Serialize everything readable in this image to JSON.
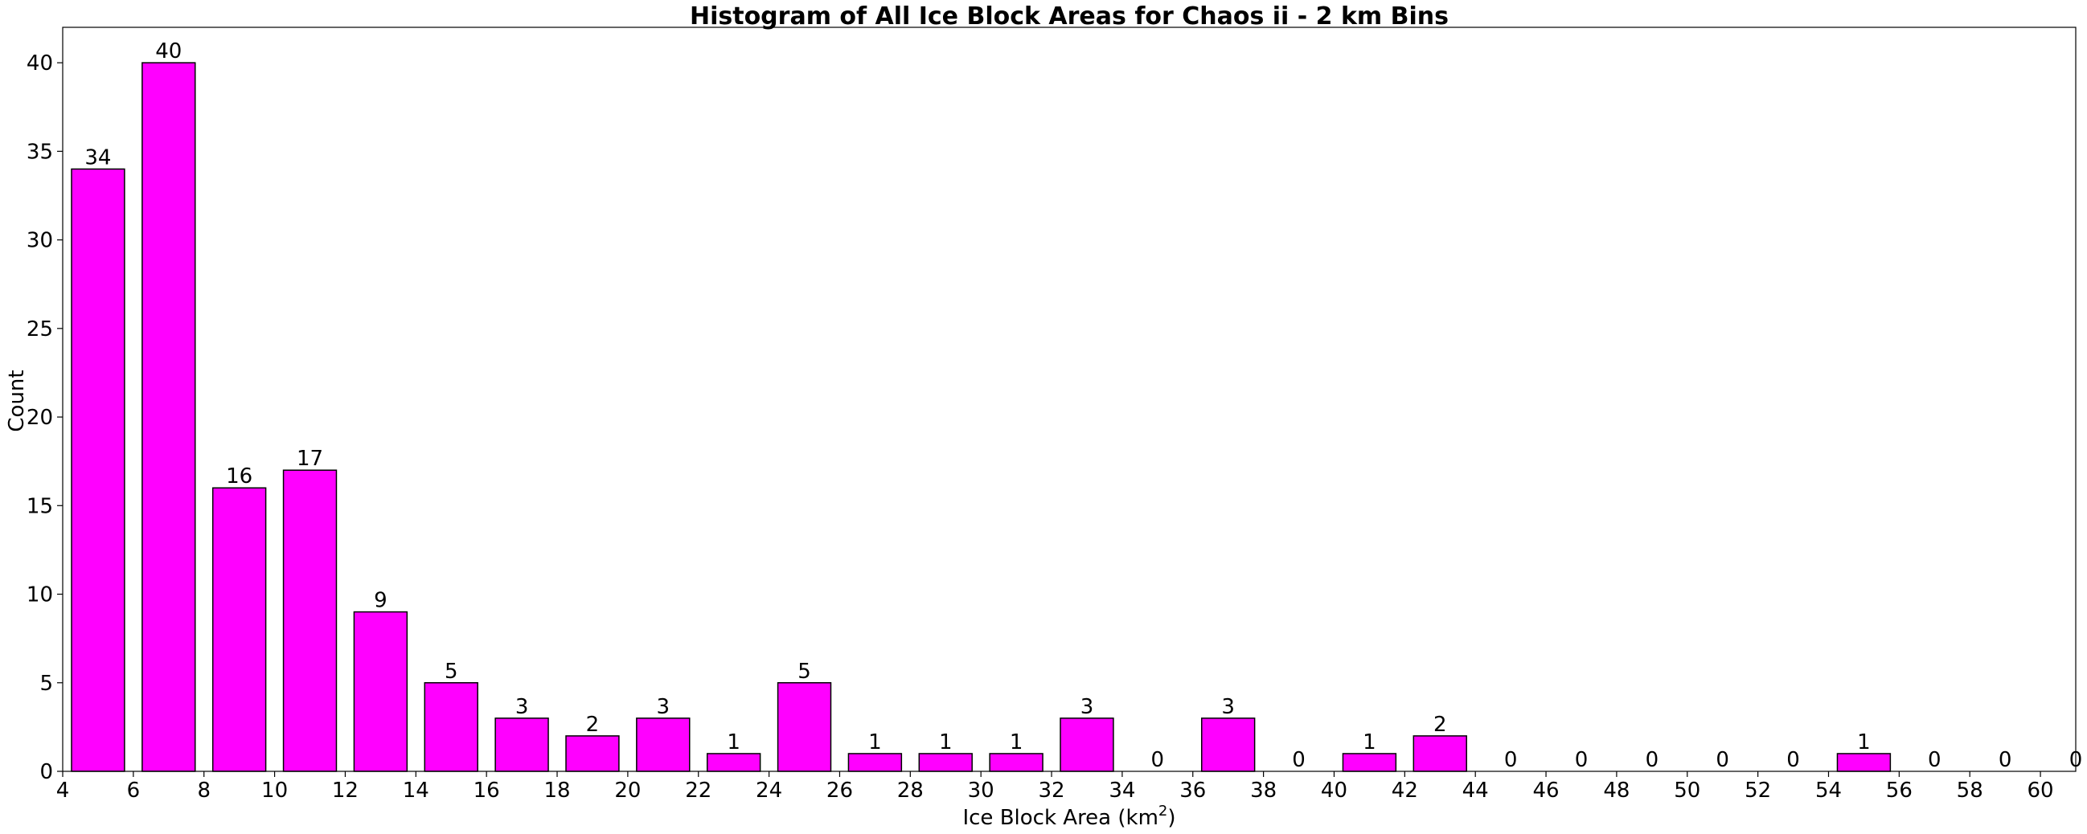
{
  "chart_data": {
    "type": "bar",
    "title": "Histogram of All Ice Block Areas for Chaos ii - 2 km Bins",
    "xlabel": "Ice Block Area (km",
    "xlabel_sup": "2",
    "xlabel_close": ")",
    "ylabel": "Count",
    "xlim": [
      4,
      61
    ],
    "ylim": [
      0,
      42
    ],
    "bar_color": "#ff00ff",
    "bar_edge_color": "#000000",
    "bar_width": 1.5,
    "grid": false,
    "x_ticks": [
      4,
      6,
      8,
      10,
      12,
      14,
      16,
      18,
      20,
      22,
      24,
      26,
      28,
      30,
      32,
      34,
      36,
      38,
      40,
      42,
      44,
      46,
      48,
      50,
      52,
      54,
      56,
      58,
      60
    ],
    "y_ticks": [
      0,
      5,
      10,
      15,
      20,
      25,
      30,
      35,
      40
    ],
    "bins": [
      {
        "center": 5,
        "value": 34
      },
      {
        "center": 7,
        "value": 40
      },
      {
        "center": 9,
        "value": 16
      },
      {
        "center": 11,
        "value": 17
      },
      {
        "center": 13,
        "value": 9
      },
      {
        "center": 15,
        "value": 5
      },
      {
        "center": 17,
        "value": 3
      },
      {
        "center": 19,
        "value": 2
      },
      {
        "center": 21,
        "value": 3
      },
      {
        "center": 23,
        "value": 1
      },
      {
        "center": 25,
        "value": 5
      },
      {
        "center": 27,
        "value": 1
      },
      {
        "center": 29,
        "value": 1
      },
      {
        "center": 31,
        "value": 1
      },
      {
        "center": 33,
        "value": 3
      },
      {
        "center": 35,
        "value": 0
      },
      {
        "center": 37,
        "value": 3
      },
      {
        "center": 39,
        "value": 0
      },
      {
        "center": 41,
        "value": 1
      },
      {
        "center": 43,
        "value": 2
      },
      {
        "center": 45,
        "value": 0
      },
      {
        "center": 47,
        "value": 0
      },
      {
        "center": 49,
        "value": 0
      },
      {
        "center": 51,
        "value": 0
      },
      {
        "center": 53,
        "value": 0
      },
      {
        "center": 55,
        "value": 1
      },
      {
        "center": 57,
        "value": 0
      },
      {
        "center": 59,
        "value": 0
      },
      {
        "center": 61,
        "value": 0
      }
    ]
  }
}
